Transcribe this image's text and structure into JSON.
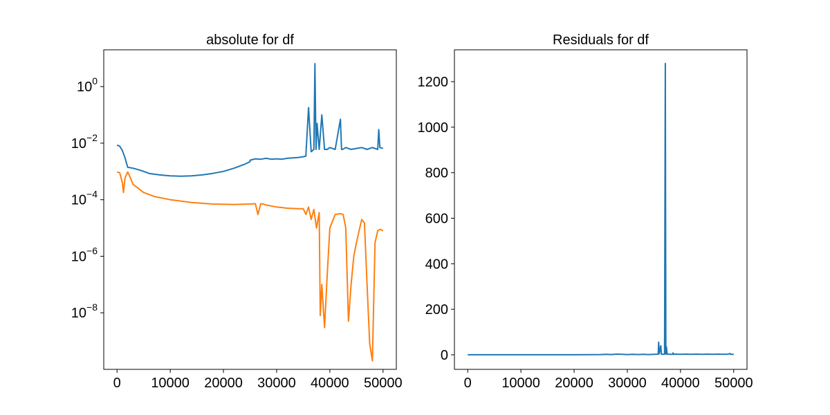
{
  "chart_data": [
    {
      "type": "line",
      "title": "absolute for df",
      "xlabel": "",
      "ylabel": "",
      "yscale": "log",
      "grid": false,
      "xlim": [
        -2500,
        52500
      ],
      "ylim": [
        1e-10,
        20
      ],
      "x_ticks": [
        0,
        10000,
        20000,
        30000,
        40000,
        50000
      ],
      "x_tick_labels": [
        "0",
        "10000",
        "20000",
        "30000",
        "40000",
        "50000"
      ],
      "y_ticks": [
        1,
        0.01,
        0.0001,
        1e-06,
        1e-08
      ],
      "y_tick_labels": [
        {
          "base": "10",
          "exp": "0"
        },
        {
          "base": "10",
          "exp": "−2"
        },
        {
          "base": "10",
          "exp": "−4"
        },
        {
          "base": "10",
          "exp": "−6"
        },
        {
          "base": "10",
          "exp": "−8"
        }
      ],
      "series": [
        {
          "color": "#1f77b4",
          "x": [
            0,
            500,
            1000,
            1500,
            2000,
            2500,
            3000,
            4000,
            5000,
            6000,
            8000,
            10000,
            12000,
            14000,
            16000,
            18000,
            20000,
            22000,
            24000,
            25000,
            25000,
            26000,
            27000,
            28000,
            29000,
            30000,
            31000,
            32000,
            33000,
            34000,
            35000,
            35500,
            35500,
            36000,
            36500,
            37000,
            37200,
            37400,
            37600,
            38000,
            38500,
            39000,
            39500,
            40000,
            41000,
            42000,
            42200,
            42400,
            43000,
            44000,
            45000,
            46000,
            47000,
            48000,
            49000,
            49200,
            49400,
            50000
          ],
          "y": [
            0.0085,
            0.0078,
            0.0055,
            0.003,
            0.0014,
            0.00135,
            0.0013,
            0.00115,
            0.001,
            0.00085,
            0.00075,
            0.0007,
            0.00068,
            0.0007,
            0.00075,
            0.00085,
            0.001,
            0.0013,
            0.0018,
            0.0022,
            0.0025,
            0.0028,
            0.0027,
            0.0029,
            0.0027,
            0.0028,
            0.0027,
            0.0029,
            0.003,
            0.0031,
            0.0033,
            0.0035,
            0.004,
            0.18,
            0.005,
            0.006,
            6.5,
            0.006,
            0.05,
            0.006,
            0.1,
            0.006,
            0.006,
            0.007,
            0.006,
            0.07,
            0.006,
            0.006,
            0.007,
            0.006,
            0.0065,
            0.007,
            0.006,
            0.007,
            0.006,
            0.03,
            0.007,
            0.0065
          ]
        },
        {
          "color": "#ff7f0e",
          "x": [
            0,
            500,
            1000,
            1200,
            1500,
            2000,
            2500,
            3000,
            4000,
            5000,
            7000,
            10000,
            14000,
            18000,
            22000,
            25000,
            26000,
            26500,
            27000,
            27500,
            28000,
            29000,
            30000,
            32000,
            34000,
            35000,
            35500,
            36000,
            36500,
            37000,
            37500,
            38000,
            38200,
            38500,
            39000,
            39500,
            40000,
            41000,
            42000,
            42500,
            43000,
            43500,
            44000,
            44500,
            45000,
            45500,
            46000,
            46500,
            47000,
            47500,
            48000,
            48500,
            49000,
            49500,
            50000
          ],
          "y": [
            0.00095,
            0.0009,
            0.0004,
            0.00018,
            0.0006,
            0.00095,
            0.0006,
            0.00035,
            0.00025,
            0.00018,
            0.00013,
            0.0001,
            8e-05,
            7e-05,
            6.8e-05,
            7e-05,
            7.2e-05,
            3e-05,
            7.2e-05,
            7e-05,
            6.5e-05,
            6e-05,
            5.5e-05,
            5e-05,
            4.8e-05,
            4.8e-05,
            3e-05,
            5.5e-05,
            2e-05,
            4.5e-05,
            1e-05,
            3.5e-05,
            8e-09,
            1e-07,
            3e-09,
            2e-07,
            1e-05,
            3e-05,
            3.2e-05,
            3e-05,
            1e-05,
            5e-09,
            1e-07,
            1e-06,
            3e-06,
            8e-06,
            2e-05,
            1.5e-05,
            1e-07,
            8e-10,
            2e-10,
            3e-06,
            8e-06,
            9e-06,
            8e-06
          ]
        }
      ]
    },
    {
      "type": "line",
      "title": "Residuals for df",
      "xlabel": "",
      "ylabel": "",
      "yscale": "linear",
      "grid": false,
      "xlim": [
        -2500,
        52500
      ],
      "ylim": [
        -64,
        1340
      ],
      "x_ticks": [
        0,
        10000,
        20000,
        30000,
        40000,
        50000
      ],
      "x_tick_labels": [
        "0",
        "10000",
        "20000",
        "30000",
        "40000",
        "50000"
      ],
      "y_ticks": [
        0,
        200,
        400,
        600,
        800,
        1000,
        1200
      ],
      "y_tick_labels": [
        "0",
        "200",
        "400",
        "600",
        "800",
        "1000",
        "1200"
      ],
      "series": [
        {
          "color": "#1f77b4",
          "x": [
            0,
            10000,
            20000,
            25000,
            26000,
            27000,
            28000,
            29000,
            30000,
            31000,
            32000,
            33000,
            34000,
            35000,
            35800,
            35900,
            36000,
            36300,
            36400,
            36500,
            37000,
            37150,
            37250,
            37350,
            37500,
            38000,
            38500,
            38600,
            38700,
            39000,
            40000,
            41000,
            42000,
            43000,
            44000,
            45000,
            46000,
            47000,
            48000,
            49000,
            49300,
            49400,
            50000
          ],
          "y": [
            0,
            0,
            0,
            1,
            2,
            1,
            3,
            2,
            1,
            2,
            1,
            2,
            1,
            2,
            3,
            55,
            4,
            40,
            3,
            2,
            3,
            1280,
            3,
            35,
            3,
            2,
            2,
            8,
            2,
            3,
            2,
            3,
            2,
            3,
            2,
            3,
            2,
            3,
            2,
            3,
            6,
            2,
            2
          ]
        }
      ]
    }
  ]
}
